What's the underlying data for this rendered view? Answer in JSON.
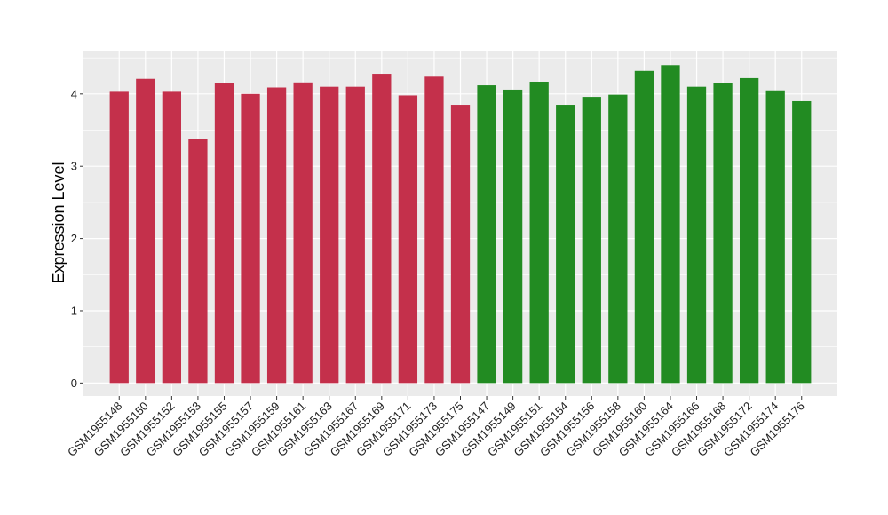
{
  "chart_data": {
    "type": "bar",
    "title": "",
    "xlabel": "",
    "ylabel": "Expression Level",
    "ylim": [
      -0.18,
      4.6
    ],
    "yticks": [
      0,
      1,
      2,
      3,
      4
    ],
    "grid": true,
    "legend": "none",
    "colors": {
      "group_a": "#C4304B",
      "group_b": "#228B22",
      "panel_bg": "#EBEBEB",
      "grid": "#FFFFFF"
    },
    "categories": [
      "GSM1955148",
      "GSM1955150",
      "GSM1955152",
      "GSM1955153",
      "GSM1955155",
      "GSM1955157",
      "GSM1955159",
      "GSM1955161",
      "GSM1955163",
      "GSM1955167",
      "GSM1955169",
      "GSM1955171",
      "GSM1955173",
      "GSM1955175",
      "GSM1955147",
      "GSM1955149",
      "GSM1955151",
      "GSM1955154",
      "GSM1955156",
      "GSM1955158",
      "GSM1955160",
      "GSM1955164",
      "GSM1955166",
      "GSM1955168",
      "GSM1955172",
      "GSM1955174",
      "GSM1955176"
    ],
    "values": [
      4.03,
      4.21,
      4.03,
      3.38,
      4.15,
      4.0,
      4.09,
      4.16,
      4.1,
      4.1,
      4.28,
      3.98,
      4.24,
      3.85,
      4.12,
      4.06,
      4.17,
      3.85,
      3.96,
      3.99,
      4.32,
      4.4,
      4.1,
      4.15,
      4.22,
      4.05,
      3.9
    ],
    "group": [
      "a",
      "a",
      "a",
      "a",
      "a",
      "a",
      "a",
      "a",
      "a",
      "a",
      "a",
      "a",
      "a",
      "a",
      "b",
      "b",
      "b",
      "b",
      "b",
      "b",
      "b",
      "b",
      "b",
      "b",
      "b",
      "b",
      "b"
    ]
  }
}
